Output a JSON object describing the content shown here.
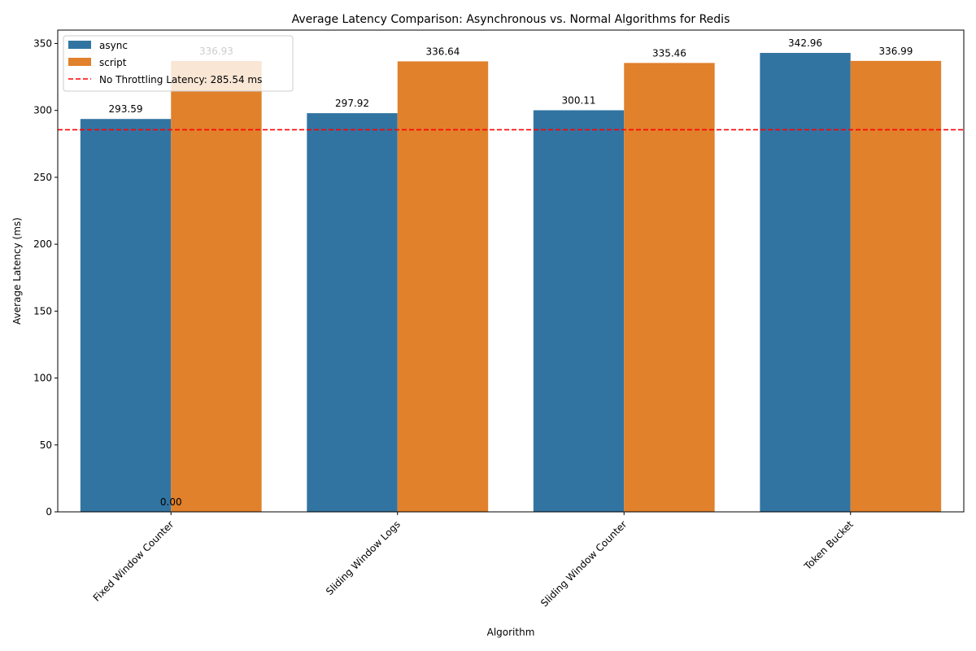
{
  "chart_data": {
    "type": "bar",
    "title": "Average Latency Comparison: Asynchronous vs. Normal Algorithms for Redis",
    "xlabel": "Algorithm",
    "ylabel": "Average Latency (ms)",
    "categories": [
      "Fixed Window Counter",
      "Sliding Window Logs",
      "Sliding Window Counter",
      "Token Bucket"
    ],
    "series": [
      {
        "name": "async",
        "color": "#3274a1",
        "values": [
          293.59,
          297.92,
          300.11,
          342.96
        ]
      },
      {
        "name": "script",
        "color": "#e1812c",
        "values": [
          336.93,
          336.64,
          335.46,
          336.99
        ]
      }
    ],
    "value_labels": [
      [
        "293.59",
        "297.92",
        "300.11",
        "342.96"
      ],
      [
        "336.93",
        "336.64",
        "335.46",
        "336.99"
      ]
    ],
    "extra_value_label": {
      "text": "0.00",
      "category": "Fixed Window Counter",
      "value": 0
    },
    "reference_line": {
      "label": "No Throttling Latency: 285.54 ms",
      "value": 285.54,
      "color": "#ff0000",
      "style": "dashed"
    },
    "ylim": [
      0,
      360
    ],
    "yticks": [
      0,
      50,
      100,
      150,
      200,
      250,
      300,
      350
    ],
    "legend_position": "top-left",
    "grid": false
  }
}
